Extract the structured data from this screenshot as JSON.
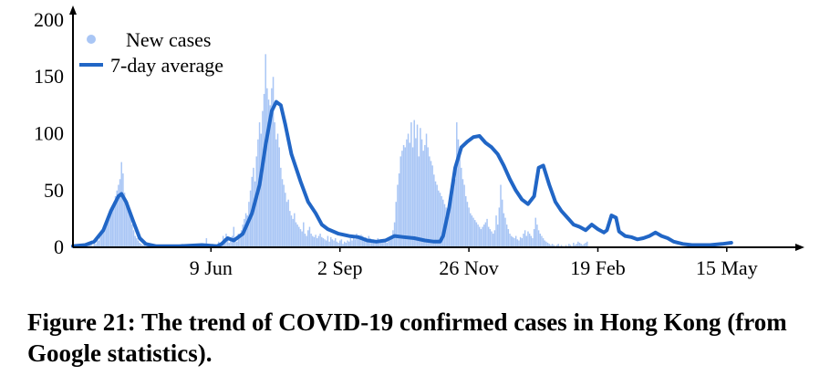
{
  "caption": "Figure 21: The trend of COVID-19 confirmed cases in Hong Kong (from Google statistics).",
  "colors": {
    "bars": "#a9c6f5",
    "average": "#2166c6",
    "axis": "#000000"
  },
  "chart_data": {
    "type": "bar",
    "title": "",
    "xlabel": "",
    "ylabel": "",
    "ylim": [
      0,
      200
    ],
    "yticks": [
      0,
      50,
      100,
      150,
      200
    ],
    "x_tick_labels": [
      {
        "label": "9 Jun",
        "day": 91
      },
      {
        "label": "2 Sep",
        "day": 176
      },
      {
        "label": "26 Nov",
        "day": 261
      },
      {
        "label": "19 Feb",
        "day": 346
      },
      {
        "label": "15 May",
        "day": 431
      }
    ],
    "x_range_days": [
      0,
      475
    ],
    "legend": {
      "position": "top-left",
      "entries": [
        "New cases",
        "7-day average"
      ]
    },
    "series": [
      {
        "name": "New cases",
        "type": "bar"
      },
      {
        "name": "7-day average",
        "type": "line"
      }
    ],
    "average_curve": [
      [
        0,
        1
      ],
      [
        8,
        2
      ],
      [
        14,
        5
      ],
      [
        20,
        15
      ],
      [
        25,
        32
      ],
      [
        30,
        45
      ],
      [
        32,
        47
      ],
      [
        35,
        40
      ],
      [
        40,
        22
      ],
      [
        44,
        8
      ],
      [
        48,
        3
      ],
      [
        55,
        1
      ],
      [
        70,
        1
      ],
      [
        85,
        2
      ],
      [
        95,
        1
      ],
      [
        98,
        3
      ],
      [
        102,
        8
      ],
      [
        106,
        6
      ],
      [
        112,
        12
      ],
      [
        118,
        30
      ],
      [
        123,
        55
      ],
      [
        127,
        90
      ],
      [
        131,
        120
      ],
      [
        134,
        128
      ],
      [
        137,
        125
      ],
      [
        140,
        108
      ],
      [
        144,
        82
      ],
      [
        150,
        58
      ],
      [
        155,
        40
      ],
      [
        160,
        30
      ],
      [
        164,
        20
      ],
      [
        168,
        16
      ],
      [
        175,
        12
      ],
      [
        182,
        10
      ],
      [
        188,
        9
      ],
      [
        194,
        6
      ],
      [
        200,
        5
      ],
      [
        206,
        6
      ],
      [
        212,
        10
      ],
      [
        218,
        9
      ],
      [
        225,
        8
      ],
      [
        232,
        6
      ],
      [
        238,
        5
      ],
      [
        242,
        5
      ],
      [
        244,
        10
      ],
      [
        248,
        35
      ],
      [
        252,
        70
      ],
      [
        256,
        88
      ],
      [
        260,
        93
      ],
      [
        264,
        97
      ],
      [
        268,
        98
      ],
      [
        272,
        92
      ],
      [
        276,
        88
      ],
      [
        280,
        82
      ],
      [
        284,
        72
      ],
      [
        288,
        60
      ],
      [
        292,
        50
      ],
      [
        296,
        42
      ],
      [
        300,
        38
      ],
      [
        304,
        45
      ],
      [
        307,
        70
      ],
      [
        310,
        72
      ],
      [
        314,
        55
      ],
      [
        318,
        40
      ],
      [
        322,
        32
      ],
      [
        326,
        26
      ],
      [
        330,
        20
      ],
      [
        334,
        18
      ],
      [
        338,
        15
      ],
      [
        342,
        20
      ],
      [
        346,
        16
      ],
      [
        350,
        13
      ],
      [
        352,
        15
      ],
      [
        355,
        28
      ],
      [
        358,
        26
      ],
      [
        360,
        14
      ],
      [
        364,
        10
      ],
      [
        368,
        9
      ],
      [
        372,
        7
      ],
      [
        376,
        8
      ],
      [
        380,
        10
      ],
      [
        384,
        13
      ],
      [
        388,
        10
      ],
      [
        392,
        8
      ],
      [
        396,
        5
      ],
      [
        402,
        3
      ],
      [
        408,
        2
      ],
      [
        414,
        2
      ],
      [
        420,
        2
      ],
      [
        428,
        3
      ],
      [
        434,
        4
      ]
    ],
    "new_cases": [
      0,
      1,
      2,
      0,
      1,
      0,
      2,
      0,
      1,
      0,
      3,
      2,
      4,
      1,
      5,
      3,
      8,
      6,
      10,
      12,
      15,
      18,
      20,
      25,
      28,
      32,
      36,
      40,
      45,
      50,
      55,
      60,
      75,
      65,
      48,
      42,
      40,
      35,
      30,
      20,
      15,
      10,
      8,
      6,
      4,
      3,
      2,
      3,
      1,
      2,
      1,
      0,
      1,
      2,
      0,
      1,
      0,
      2,
      1,
      0,
      1,
      0,
      0,
      2,
      1,
      0,
      1,
      1,
      0,
      2,
      1,
      0,
      3,
      1,
      0,
      2,
      1,
      0,
      1,
      0,
      2,
      1,
      3,
      0,
      1,
      2,
      1,
      0,
      8,
      1,
      0,
      1,
      3,
      2,
      1,
      0,
      5,
      2,
      4,
      10,
      8,
      12,
      6,
      4,
      8,
      10,
      18,
      6,
      5,
      12,
      10,
      15,
      20,
      25,
      30,
      28,
      40,
      50,
      62,
      70,
      58,
      80,
      95,
      110,
      100,
      120,
      135,
      170,
      140,
      130,
      125,
      140,
      150,
      110,
      95,
      100,
      88,
      70,
      60,
      55,
      48,
      40,
      42,
      32,
      28,
      25,
      30,
      22,
      20,
      18,
      16,
      14,
      22,
      12,
      10,
      15,
      18,
      12,
      10,
      9,
      11,
      8,
      10,
      12,
      9,
      8,
      7,
      6,
      10,
      5,
      9,
      7,
      6,
      8,
      5,
      4,
      6,
      7,
      3,
      5,
      4,
      6,
      5,
      8,
      6,
      10,
      7,
      12,
      9,
      8,
      11,
      10,
      8,
      9,
      7,
      10,
      8,
      6,
      7,
      5,
      6,
      8,
      5,
      7,
      4,
      6,
      5,
      4,
      6,
      8,
      10,
      15,
      22,
      40,
      55,
      65,
      80,
      85,
      90,
      88,
      95,
      100,
      92,
      110,
      88,
      112,
      96,
      108,
      80,
      105,
      95,
      85,
      90,
      100,
      88,
      80,
      76,
      72,
      64,
      58,
      55,
      50,
      48,
      45,
      42,
      38,
      35,
      34,
      40,
      48,
      52,
      55,
      60,
      110,
      95,
      80,
      70,
      60,
      55,
      45,
      40,
      35,
      30,
      28,
      26,
      24,
      22,
      20,
      18,
      16,
      18,
      20,
      22,
      25,
      18,
      16,
      14,
      12,
      15,
      28,
      20,
      35,
      55,
      42,
      30,
      26,
      20,
      16,
      12,
      10,
      9,
      8,
      10,
      7,
      6,
      9,
      8,
      12,
      15,
      10,
      14,
      12,
      10,
      8,
      16,
      26,
      20,
      15,
      12,
      10,
      8,
      6,
      5,
      4,
      3,
      2,
      3,
      2,
      1,
      2,
      3,
      1,
      2,
      1,
      0,
      2,
      1,
      3,
      2,
      1,
      4,
      2,
      3,
      5,
      4,
      3,
      2,
      3,
      4,
      5
    ],
    "new_cases_start_day": 0
  }
}
